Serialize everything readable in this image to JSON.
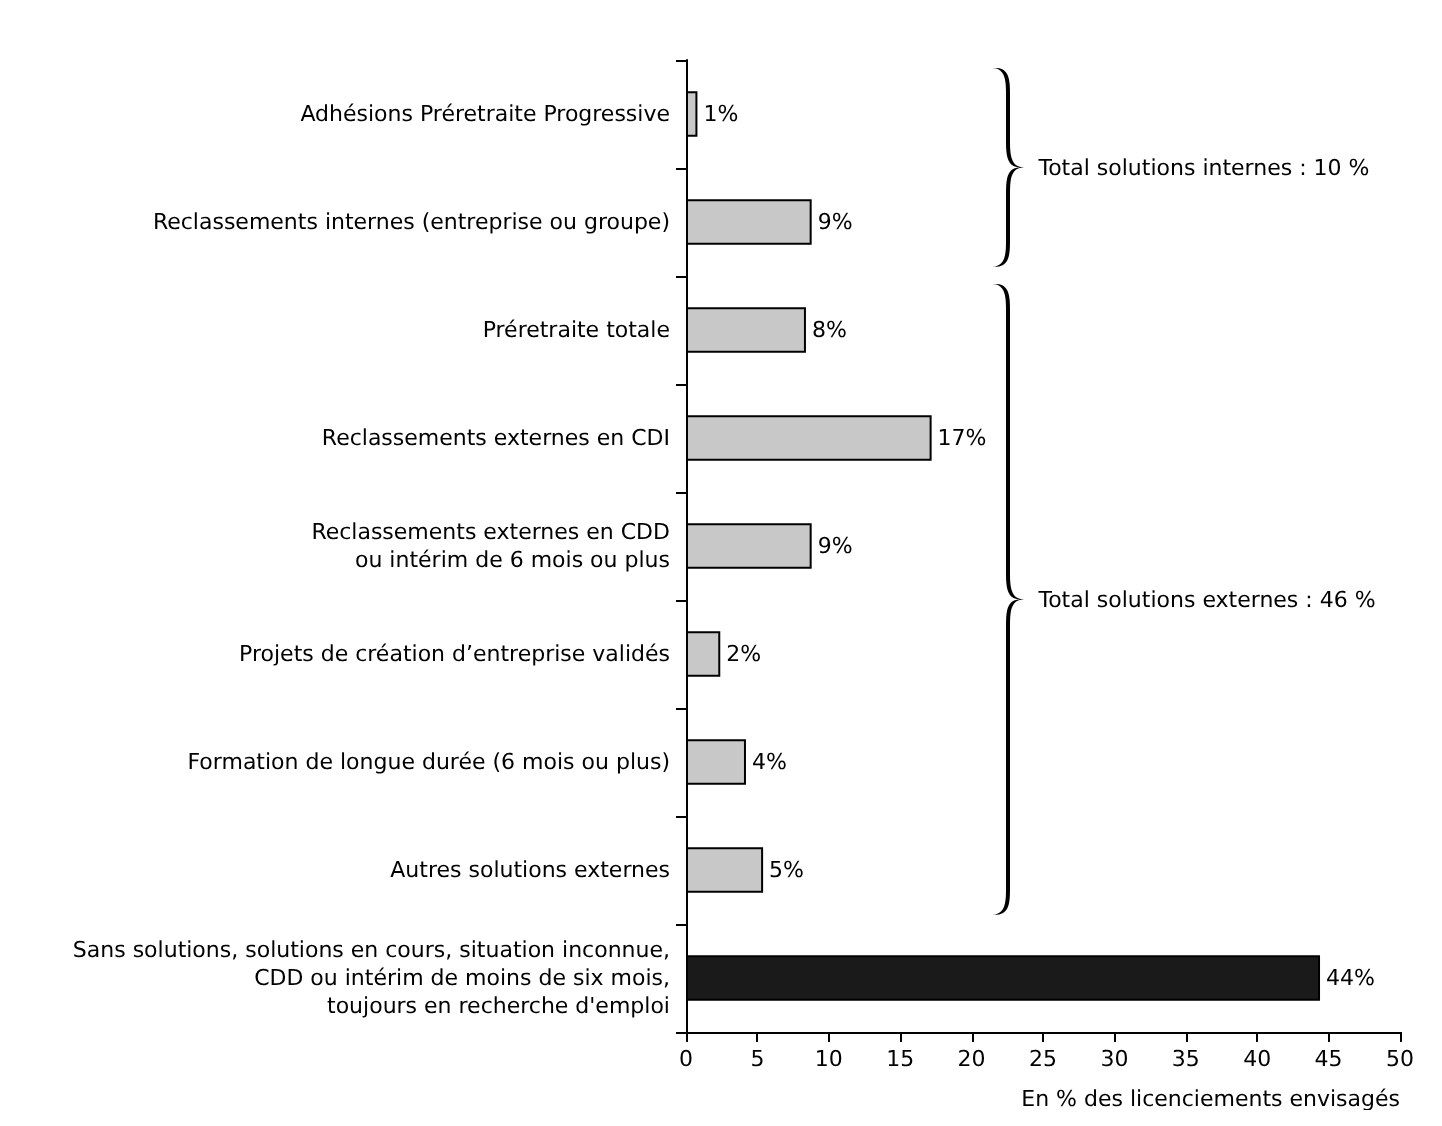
{
  "chart_data": {
    "type": "bar",
    "orientation": "horizontal",
    "xlabel": "En % des licenciements envisagés",
    "categories": [
      "Adhésions Préretraite Progressive",
      "Reclassements internes (entreprise ou groupe)",
      "Préretraite totale",
      "Reclassements externes en CDI",
      "Reclassements externes en CDD\nou intérim de 6 mois ou plus",
      "Projets de création d’entreprise validés",
      "Formation de longue durée (6 mois ou plus)",
      "Autres solutions externes",
      "Sans solutions, solutions en cours, situation inconnue,\nCDD ou intérim de moins de six mois,\ntoujours en recherche d'emploi"
    ],
    "values": [
      0.8,
      8.8,
      8.4,
      17.2,
      8.8,
      2.4,
      4.2,
      5.4,
      44.4
    ],
    "value_labels": [
      "1%",
      "9%",
      "8%",
      "17%",
      "9%",
      "2%",
      "4%",
      "5%",
      "44%"
    ],
    "colors": [
      "#c8c8c8",
      "#c8c8c8",
      "#c8c8c8",
      "#c8c8c8",
      "#c8c8c8",
      "#c8c8c8",
      "#c8c8c8",
      "#c8c8c8",
      "#1a1a1a"
    ],
    "xlim": [
      0,
      50
    ],
    "xticks": [
      0,
      5,
      10,
      15,
      20,
      25,
      30,
      35,
      40,
      45,
      50
    ],
    "grid": false,
    "annotations": [
      "Total solutions internes : 10 %",
      "Total solutions externes : 46 %"
    ]
  }
}
